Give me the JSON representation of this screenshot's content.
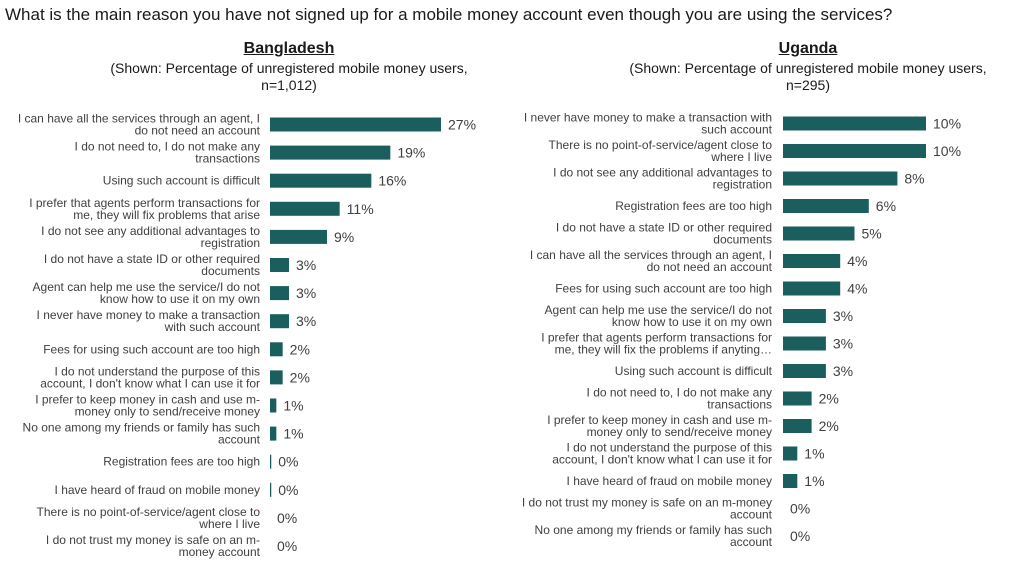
{
  "title": "What is the main reason you have not signed up for a mobile money account even though you are using the services?",
  "chart_data": [
    {
      "type": "bar",
      "orientation": "horizontal",
      "title": "Bangladesh",
      "subtitle": "(Shown: Percentage of unregistered mobile money users, n=1,012)",
      "unit": "%",
      "bar_color": "#1b5e5e",
      "categories": [
        [
          "I can have all the services through an agent, I",
          "do not need an account"
        ],
        [
          "I do not need to, I do not make any",
          "transactions"
        ],
        [
          "Using such account is difficult"
        ],
        [
          "I prefer that agents perform transactions for",
          "me, they will fix problems that arise"
        ],
        [
          "I do not see any additional advantages to",
          "registration"
        ],
        [
          "I do not have a state ID or other required",
          "documents"
        ],
        [
          "Agent can help me use the service/I do not",
          "know how to use it on my own"
        ],
        [
          "I never have money to make a transaction",
          "with such account"
        ],
        [
          "Fees for using such account are too high"
        ],
        [
          "I do not understand the purpose of this",
          "account, I don't know what I can use it for"
        ],
        [
          "I prefer to keep money in cash and use m-",
          "money only to send/receive money"
        ],
        [
          "No one among my friends or family has such",
          "account"
        ],
        [
          "Registration fees are too high"
        ],
        [
          "I have heard of fraud on mobile money"
        ],
        [
          "There is no point-of-service/agent close to",
          "where I live"
        ],
        [
          "I do not trust my money is safe on an m-",
          "money account"
        ]
      ],
      "values": [
        27,
        19,
        16,
        11,
        9,
        3,
        3,
        3,
        2,
        2,
        1,
        1,
        0.2,
        0.2,
        0,
        0
      ],
      "value_labels": [
        "27%",
        "19%",
        "16%",
        "11%",
        "9%",
        "3%",
        "3%",
        "3%",
        "2%",
        "2%",
        "1%",
        "1%",
        "0%",
        "0%",
        "0%",
        "0%"
      ],
      "xlim": [
        0,
        27
      ]
    },
    {
      "type": "bar",
      "orientation": "horizontal",
      "title": "Uganda",
      "subtitle": "(Shown: Percentage of unregistered mobile money users, n=295)",
      "unit": "%",
      "bar_color": "#1b5e5e",
      "categories": [
        [
          "I never have money to make a transaction with",
          "such account"
        ],
        [
          "There is no point-of-service/agent close to",
          "where I live"
        ],
        [
          "I do not see any additional advantages to",
          "registration"
        ],
        [
          "Registration fees are too high"
        ],
        [
          "I do not have a state ID or other required",
          "documents"
        ],
        [
          "I can have all the services through an agent, I",
          "do not need an account"
        ],
        [
          "Fees for using such account are too high"
        ],
        [
          "Agent can help me use the service/I do not",
          "know how to use it on my own"
        ],
        [
          "I prefer that agents perform transactions for",
          "me, they will fix the problems if anyting…"
        ],
        [
          "Using such account is difficult"
        ],
        [
          "I do not need to, I do not make any",
          "transactions"
        ],
        [
          "I prefer to keep money in cash and use m-",
          "money only to send/receive money"
        ],
        [
          "I do not understand the purpose of this",
          "account, I don't know what I can use it for"
        ],
        [
          "I have heard of fraud on mobile money"
        ],
        [
          "I do not trust my money is safe on an m-money",
          "account"
        ],
        [
          "No one among my friends or family has such",
          "account"
        ]
      ],
      "values": [
        10,
        10,
        8,
        6,
        5,
        4,
        4,
        3,
        3,
        3,
        2,
        2,
        1,
        1,
        0,
        0
      ],
      "value_labels": [
        "10%",
        "10%",
        "8%",
        "6%",
        "5%",
        "4%",
        "4%",
        "3%",
        "3%",
        "3%",
        "2%",
        "2%",
        "1%",
        "1%",
        "0%",
        "0%"
      ],
      "xlim": [
        0,
        10
      ]
    }
  ]
}
